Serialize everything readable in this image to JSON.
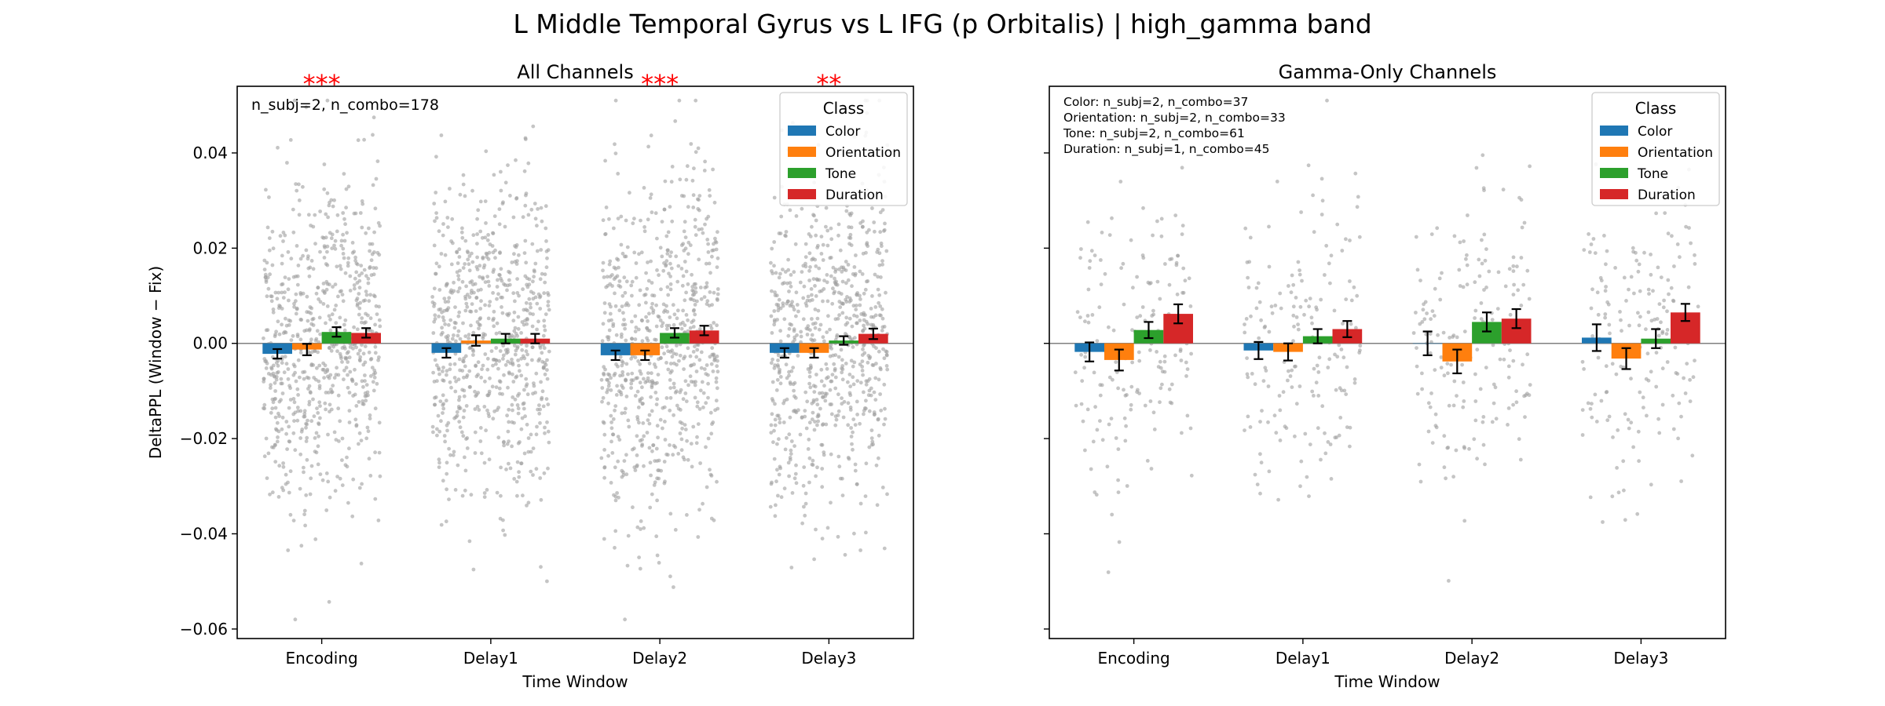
{
  "suptitle": "L Middle Temporal Gyrus vs L IFG (p Orbitalis)  |  high_gamma band",
  "colors": {
    "Color": "#1f77b4",
    "Orientation": "#ff7f0e",
    "Tone": "#2ca02c",
    "Duration": "#d62728",
    "significance": "#ff0000",
    "scatter": "#9e9e9e"
  },
  "chart_data": [
    {
      "type": "bar",
      "title": "All Channels",
      "xlabel": "Time Window",
      "ylabel": "DeltaPPL (Window − Fix)",
      "categories": [
        "Encoding",
        "Delay1",
        "Delay2",
        "Delay3"
      ],
      "ylim": [
        -0.062,
        0.054
      ],
      "yticks": [
        {
          "value": 0.04,
          "label": "0.04"
        },
        {
          "value": 0.02,
          "label": "0.02"
        },
        {
          "value": 0.0,
          "label": "0.00"
        },
        {
          "value": -0.02,
          "label": "−0.02"
        },
        {
          "value": -0.04,
          "label": "−0.04"
        },
        {
          "value": -0.06,
          "label": "−0.06"
        }
      ],
      "annotation": "n_subj=2, n_combo=178",
      "significance": [
        "***",
        "",
        "***",
        "**"
      ],
      "legend": {
        "title": "Class",
        "position": "top-right"
      },
      "scatter_n": 178,
      "scatter_sd": 0.017,
      "series": [
        {
          "name": "Color",
          "values": [
            -0.0022,
            -0.002,
            -0.0025,
            -0.002
          ],
          "err": [
            0.001,
            0.001,
            0.001,
            0.001
          ]
        },
        {
          "name": "Orientation",
          "values": [
            -0.0013,
            0.0006,
            -0.0025,
            -0.002
          ],
          "err": [
            0.0012,
            0.0011,
            0.001,
            0.001
          ]
        },
        {
          "name": "Tone",
          "values": [
            0.0024,
            0.001,
            0.0022,
            0.0006
          ],
          "err": [
            0.001,
            0.001,
            0.001,
            0.0009
          ]
        },
        {
          "name": "Duration",
          "values": [
            0.0022,
            0.001,
            0.0027,
            0.002
          ],
          "err": [
            0.001,
            0.001,
            0.001,
            0.0011
          ]
        }
      ]
    },
    {
      "type": "bar",
      "title": "Gamma-Only Channels",
      "xlabel": "Time Window",
      "ylabel": "",
      "categories": [
        "Encoding",
        "Delay1",
        "Delay2",
        "Delay3"
      ],
      "ylim": [
        -0.062,
        0.054
      ],
      "yticks": [
        {
          "value": 0.04,
          "label": ""
        },
        {
          "value": 0.02,
          "label": ""
        },
        {
          "value": 0.0,
          "label": ""
        },
        {
          "value": -0.02,
          "label": ""
        },
        {
          "value": -0.04,
          "label": ""
        },
        {
          "value": -0.06,
          "label": ""
        }
      ],
      "annotation_lines": [
        "Color: n_subj=2, n_combo=37",
        "Orientation: n_subj=2, n_combo=33",
        "Tone: n_subj=2, n_combo=61",
        "Duration: n_subj=1, n_combo=45"
      ],
      "significance": [
        "",
        "",
        "",
        ""
      ],
      "legend": {
        "title": "Class",
        "position": "top-right"
      },
      "scatter_n": 45,
      "scatter_sd": 0.015,
      "series": [
        {
          "name": "Color",
          "values": [
            -0.0018,
            -0.0015,
            0.0,
            0.0012
          ],
          "err": [
            0.002,
            0.0018,
            0.0025,
            0.0028
          ]
        },
        {
          "name": "Orientation",
          "values": [
            -0.0035,
            -0.0018,
            -0.0038,
            -0.0032
          ],
          "err": [
            0.0022,
            0.0018,
            0.0025,
            0.0022
          ]
        },
        {
          "name": "Tone",
          "values": [
            0.0028,
            0.0015,
            0.0045,
            0.001
          ],
          "err": [
            0.0017,
            0.0015,
            0.002,
            0.002
          ]
        },
        {
          "name": "Duration",
          "values": [
            0.0062,
            0.003,
            0.0052,
            0.0065
          ],
          "err": [
            0.002,
            0.0017,
            0.002,
            0.0018
          ]
        }
      ]
    }
  ]
}
